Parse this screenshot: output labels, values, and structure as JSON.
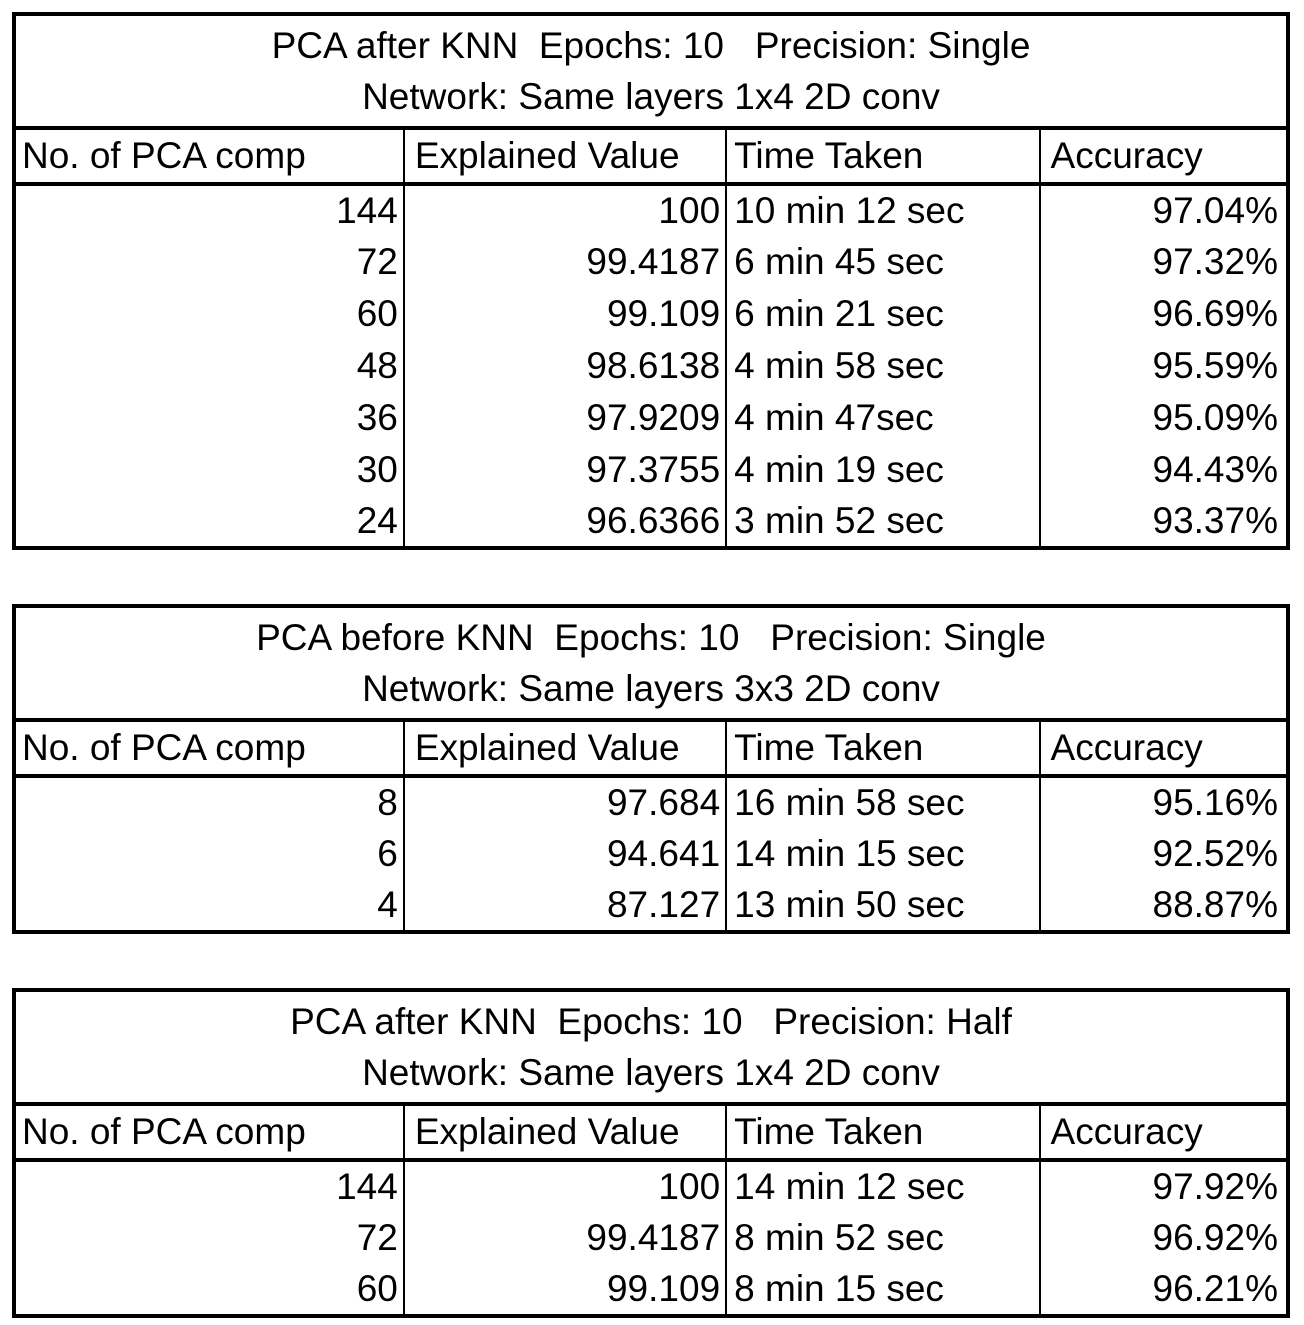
{
  "page": {
    "background": "#ffffff",
    "text_color": "#000000",
    "border_color": "#000000"
  },
  "tables": [
    {
      "title_line1": "PCA after KNN  Epochs: 10   Precision: Single",
      "title_line2": "Network: Same layers 1x4 2D conv",
      "columns": [
        "No. of PCA comp",
        "Explained Value",
        "Time Taken",
        "Accuracy"
      ],
      "rows": [
        [
          "144",
          "100",
          "10 min 12 sec",
          "97.04%"
        ],
        [
          "72",
          "99.4187",
          "6 min 45 sec",
          "97.32%"
        ],
        [
          "60",
          "99.109",
          "6 min 21 sec",
          "96.69%"
        ],
        [
          "48",
          "98.6138",
          "4 min 58 sec",
          "95.59%"
        ],
        [
          "36",
          "97.9209",
          "4 min 47sec",
          "95.09%"
        ],
        [
          "30",
          "97.3755",
          "4 min 19 sec",
          "94.43%"
        ],
        [
          "24",
          "96.6366",
          "3 min 52 sec",
          "93.37%"
        ]
      ]
    },
    {
      "title_line1": "PCA before KNN  Epochs: 10   Precision: Single",
      "title_line2": "Network: Same layers 3x3 2D conv",
      "columns": [
        "No. of PCA comp",
        "Explained Value",
        "Time Taken",
        "Accuracy"
      ],
      "rows": [
        [
          "8",
          "97.684",
          "16 min 58 sec",
          "95.16%"
        ],
        [
          "6",
          "94.641",
          "14 min 15 sec",
          "92.52%"
        ],
        [
          "4",
          "87.127",
          "13 min 50 sec",
          "88.87%"
        ]
      ]
    },
    {
      "title_line1": "PCA after KNN  Epochs: 10   Precision: Half",
      "title_line2": "Network: Same layers 1x4 2D conv",
      "columns": [
        "No. of PCA comp",
        "Explained Value",
        "Time Taken",
        "Accuracy"
      ],
      "rows": [
        [
          "144",
          "100",
          "14 min 12 sec",
          "97.92%"
        ],
        [
          "72",
          "99.4187",
          "8 min 52 sec",
          "96.92%"
        ],
        [
          "60",
          "99.109",
          "8 min 15 sec",
          "96.21%"
        ]
      ]
    }
  ]
}
